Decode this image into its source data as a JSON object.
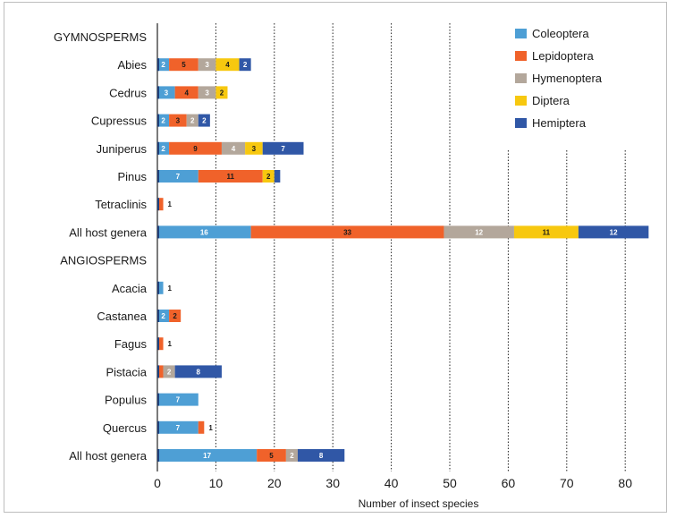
{
  "chart_data": {
    "type": "bar",
    "orientation": "horizontal",
    "stacked": true,
    "xlabel": "Number of insect species",
    "xlim": [
      0,
      84
    ],
    "xticks": [
      0,
      10,
      20,
      30,
      40,
      50,
      60,
      70,
      80
    ],
    "grid": "vertical dotted",
    "legend_position": "top-right",
    "categories": [
      "GYMNOSPERMS",
      "Abies",
      "Cedrus",
      "Cupressus",
      "Juniperus",
      "Pinus",
      "Tetraclinis",
      "All host genera",
      "ANGIOSPERMS",
      "Acacia",
      "Castanea",
      "Fagus",
      "Pistacia",
      "Populus",
      "Quercus",
      "All host genera"
    ],
    "series": [
      {
        "name": "Coleoptera",
        "color": "#4e9fd5",
        "values": [
          null,
          2,
          3,
          2,
          2,
          7,
          0,
          16,
          null,
          1,
          2,
          0,
          0,
          7,
          7,
          17
        ]
      },
      {
        "name": "Lepidoptera",
        "color": "#f0622a",
        "values": [
          null,
          5,
          4,
          3,
          9,
          11,
          1,
          33,
          null,
          0,
          2,
          1,
          1,
          0,
          1,
          5
        ]
      },
      {
        "name": "Hymenoptera",
        "color": "#b3a79b",
        "values": [
          null,
          3,
          3,
          2,
          4,
          0,
          0,
          12,
          null,
          0,
          0,
          0,
          2,
          0,
          0,
          2
        ]
      },
      {
        "name": "Diptera",
        "color": "#f7c80f",
        "values": [
          null,
          4,
          2,
          0,
          3,
          2,
          0,
          11,
          null,
          0,
          0,
          0,
          0,
          0,
          0,
          0
        ]
      },
      {
        "name": "Hemiptera",
        "color": "#3057a6",
        "values": [
          null,
          2,
          0,
          2,
          7,
          1,
          0,
          12,
          null,
          0,
          0,
          0,
          8,
          0,
          0,
          8
        ]
      }
    ],
    "outside_labels": [
      {
        "category_index": 6,
        "text": "1"
      },
      {
        "category_index": 9,
        "text": "1"
      },
      {
        "category_index": 11,
        "text": "1"
      },
      {
        "category_index": 14,
        "text": "1"
      }
    ],
    "bold_categories": [
      0,
      8
    ]
  }
}
